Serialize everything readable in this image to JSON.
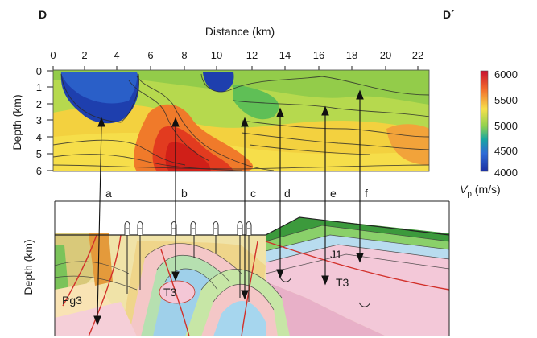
{
  "corners": {
    "left": "D",
    "right": "D´"
  },
  "top_panel": {
    "x_axis_title": "Distance (km)",
    "y_axis_title": "Depth (km)",
    "x_ticks": [
      "0",
      "2",
      "4",
      "6",
      "8",
      "10",
      "12",
      "14",
      "16",
      "18",
      "20",
      "22"
    ],
    "y_ticks": [
      "0",
      "1",
      "2",
      "3",
      "4",
      "5",
      "6"
    ]
  },
  "colorbar": {
    "ticks": [
      "6000",
      "5500",
      "5000",
      "4500",
      "4000"
    ],
    "label_main": "V",
    "label_sub": "p",
    "label_unit": " (m/s)",
    "colors": [
      "#d7191c",
      "#f46d43",
      "#fee08b",
      "#a6d96a",
      "#1a9850",
      "#2b83ba",
      "#1c3fa8"
    ]
  },
  "profiles": [
    "a",
    "b",
    "c",
    "d",
    "e",
    "f"
  ],
  "bottom_panel": {
    "y_axis_title": "Depth (km)",
    "units": [
      "J1",
      "T3",
      "T3",
      "Pg3"
    ]
  }
}
